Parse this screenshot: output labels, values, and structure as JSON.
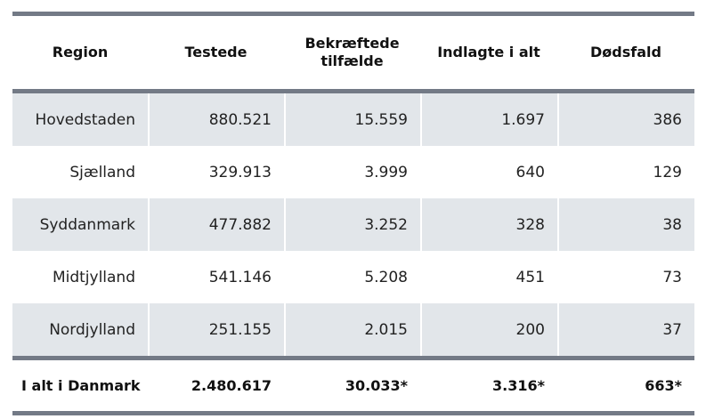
{
  "table": {
    "columns": [
      "Region",
      "Testede",
      "Bekræftede tilfælde",
      "Indlagte i alt",
      "Dødsfald"
    ],
    "header_lines": {
      "confirmed_line1": "Bekræftede",
      "confirmed_line2": "tilfælde"
    },
    "rows": [
      {
        "region": "Hovedstaden",
        "tested": "880.521",
        "confirmed": "15.559",
        "hospitalized": "1.697",
        "deaths": "386"
      },
      {
        "region": "Sjælland",
        "tested": "329.913",
        "confirmed": "3.999",
        "hospitalized": "640",
        "deaths": "129"
      },
      {
        "region": "Syddanmark",
        "tested": "477.882",
        "confirmed": "3.252",
        "hospitalized": "328",
        "deaths": "38"
      },
      {
        "region": "Midtjylland",
        "tested": "541.146",
        "confirmed": "5.208",
        "hospitalized": "451",
        "deaths": "73"
      },
      {
        "region": "Nordjylland",
        "tested": "251.155",
        "confirmed": "2.015",
        "hospitalized": "200",
        "deaths": "37"
      }
    ],
    "total": {
      "region": "I alt i Danmark",
      "tested": "2.480.617",
      "confirmed": "30.033*",
      "hospitalized": "3.316*",
      "deaths": "663*"
    }
  },
  "colors": {
    "rule": "#737a86",
    "shaded_row": "#e2e6ea"
  }
}
